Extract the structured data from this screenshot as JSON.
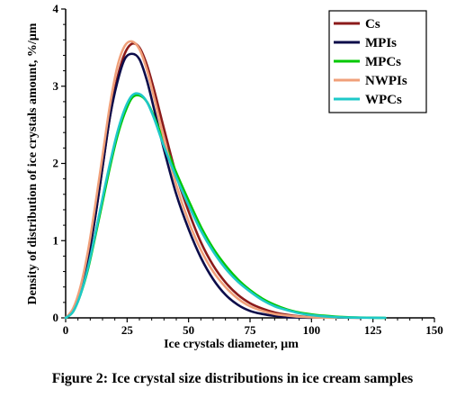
{
  "caption": "Figure 2: Ice crystal size distributions in ice cream samples",
  "chart_data": {
    "type": "line",
    "title": "",
    "xlabel": "Ice crystals diameter, µm",
    "ylabel": "Density of distribution of ice crystals amount, %/µm",
    "xlim": [
      0,
      150
    ],
    "ylim": [
      0,
      4
    ],
    "xticks": [
      0,
      25,
      50,
      75,
      100,
      125,
      150
    ],
    "yticks": [
      0,
      1,
      2,
      3,
      4
    ],
    "grid": false,
    "legend": "top-right",
    "series": [
      {
        "name": "Cs",
        "color": "#8b1a1a",
        "x": [
          0,
          3,
          6,
          9,
          12,
          15,
          18,
          21,
          24,
          27,
          30,
          33,
          36,
          40,
          45,
          50,
          55,
          60,
          65,
          70,
          75,
          80,
          85,
          90,
          95,
          100,
          110,
          120
        ],
        "y": [
          0,
          0.1,
          0.35,
          0.75,
          1.3,
          1.95,
          2.6,
          3.1,
          3.42,
          3.55,
          3.5,
          3.28,
          2.95,
          2.45,
          1.85,
          1.38,
          0.98,
          0.68,
          0.46,
          0.3,
          0.19,
          0.12,
          0.07,
          0.04,
          0.02,
          0.01,
          0.005,
          0
        ]
      },
      {
        "name": "MPIs",
        "color": "#0c0c4a",
        "x": [
          0,
          3,
          6,
          9,
          12,
          15,
          18,
          21,
          24,
          27,
          30,
          33,
          36,
          40,
          45,
          50,
          55,
          60,
          65,
          70,
          75,
          80,
          85,
          90,
          95,
          100
        ],
        "y": [
          0,
          0.1,
          0.35,
          0.75,
          1.3,
          1.95,
          2.6,
          3.05,
          3.35,
          3.42,
          3.35,
          3.08,
          2.7,
          2.18,
          1.6,
          1.15,
          0.78,
          0.5,
          0.3,
          0.17,
          0.09,
          0.05,
          0.025,
          0.01,
          0.005,
          0
        ]
      },
      {
        "name": "MPCs",
        "color": "#00c800",
        "x": [
          0,
          3,
          6,
          9,
          12,
          15,
          18,
          21,
          24,
          27,
          30,
          33,
          36,
          40,
          45,
          50,
          55,
          60,
          65,
          70,
          75,
          80,
          85,
          90,
          95,
          100,
          105,
          110,
          115,
          120,
          125,
          130
        ],
        "y": [
          0,
          0.08,
          0.3,
          0.62,
          1.05,
          1.5,
          1.95,
          2.35,
          2.65,
          2.85,
          2.88,
          2.8,
          2.6,
          2.28,
          1.88,
          1.52,
          1.18,
          0.9,
          0.68,
          0.5,
          0.36,
          0.25,
          0.17,
          0.11,
          0.07,
          0.045,
          0.028,
          0.016,
          0.008,
          0.004,
          0.002,
          0
        ]
      },
      {
        "name": "NWPIs",
        "color": "#f0a07a",
        "x": [
          0,
          3,
          6,
          9,
          12,
          15,
          18,
          21,
          24,
          27,
          30,
          33,
          36,
          40,
          45,
          50,
          55,
          60,
          65,
          70,
          75,
          80,
          85,
          90,
          95,
          100,
          110
        ],
        "y": [
          0,
          0.12,
          0.4,
          0.85,
          1.45,
          2.1,
          2.75,
          3.25,
          3.52,
          3.58,
          3.48,
          3.22,
          2.85,
          2.32,
          1.72,
          1.25,
          0.88,
          0.6,
          0.4,
          0.25,
          0.15,
          0.09,
          0.05,
          0.03,
          0.015,
          0.008,
          0
        ]
      },
      {
        "name": "WPCs",
        "color": "#1ec8c8",
        "x": [
          0,
          3,
          6,
          9,
          12,
          15,
          18,
          21,
          24,
          27,
          30,
          33,
          36,
          40,
          45,
          50,
          55,
          60,
          65,
          70,
          75,
          80,
          85,
          90,
          95,
          100,
          105,
          110,
          115,
          120,
          125,
          130
        ],
        "y": [
          0,
          0.08,
          0.3,
          0.64,
          1.08,
          1.55,
          2.0,
          2.4,
          2.7,
          2.88,
          2.9,
          2.8,
          2.58,
          2.22,
          1.82,
          1.46,
          1.13,
          0.86,
          0.64,
          0.47,
          0.34,
          0.23,
          0.15,
          0.1,
          0.06,
          0.035,
          0.02,
          0.01,
          0.005,
          0.002,
          0.001,
          0
        ]
      }
    ]
  }
}
